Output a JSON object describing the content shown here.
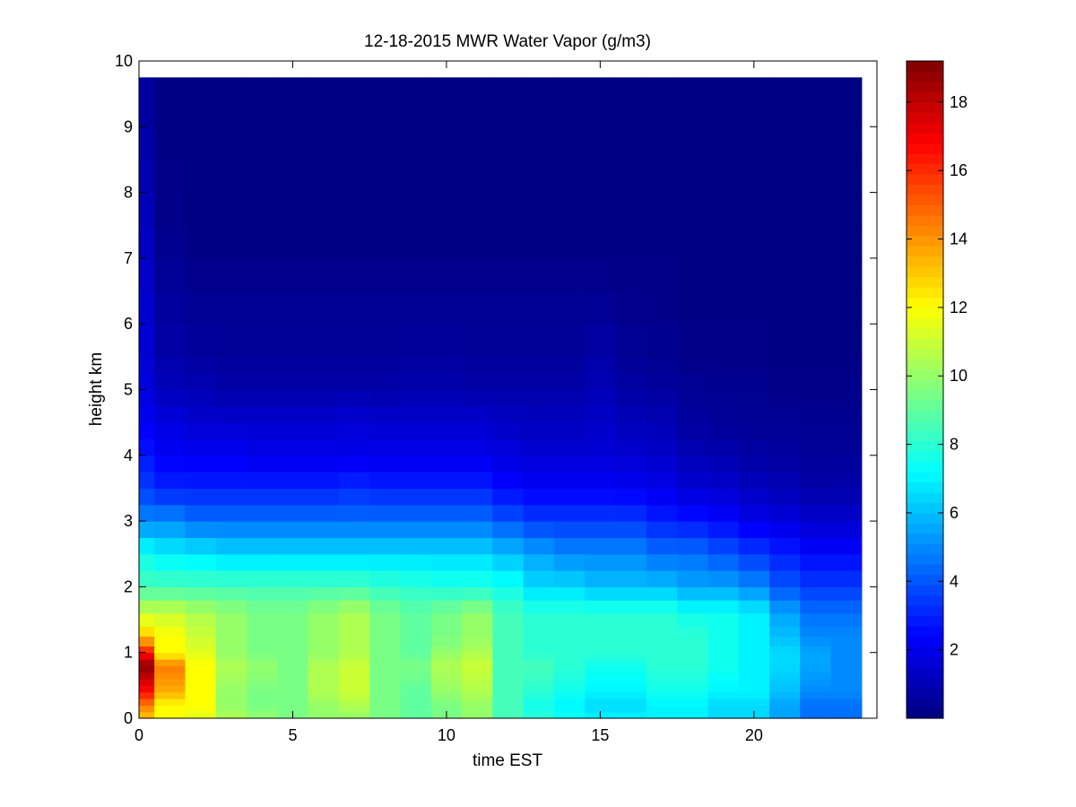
{
  "chart_data": {
    "type": "heatmap",
    "title": "12-18-2015 MWR Water Vapor (g/m3)",
    "xlabel": "time EST",
    "ylabel": "height km",
    "xlim": [
      0,
      24
    ],
    "ylim": [
      0,
      10
    ],
    "x_ticks": [
      0,
      5,
      10,
      15,
      20
    ],
    "y_ticks": [
      0,
      1,
      2,
      3,
      4,
      5,
      6,
      7,
      8,
      9,
      10
    ],
    "colorbar": {
      "colormap": "jet",
      "range": [
        0,
        19.2
      ],
      "ticks": [
        2,
        4,
        6,
        8,
        10,
        12,
        14,
        16,
        18
      ]
    },
    "grid": false,
    "time_edges": [
      0,
      0.5,
      1.5,
      2.5,
      3.5,
      4.5,
      5.5,
      6.5,
      7.5,
      8.5,
      9.5,
      10.5,
      11.5,
      12.5,
      13.5,
      14.5,
      15.5,
      16.5,
      17.5,
      18.5,
      19.5,
      20.5,
      21.5,
      22.5,
      23.5
    ],
    "height_edges": [
      0,
      0.1,
      0.2,
      0.3,
      0.4,
      0.5,
      0.6,
      0.7,
      0.8,
      0.9,
      1.0,
      1.1,
      1.25,
      1.4,
      1.6,
      1.8,
      2.0,
      2.25,
      2.5,
      2.75,
      3.0,
      3.25,
      3.5,
      3.75,
      4.0,
      4.25,
      4.5,
      4.75,
      5.0,
      5.25,
      5.5,
      6.0,
      6.5,
      7.0,
      7.5,
      8.0,
      8.5,
      9.0,
      9.75
    ],
    "height_levels_km": [
      0,
      0.2,
      0.4,
      0.8,
      1.0,
      1.25,
      1.6,
      2.0,
      2.5,
      3.0,
      3.5,
      4.0,
      4.5,
      5.0,
      5.5,
      6.5,
      7.5,
      9.75
    ],
    "time_profiles": [
      {
        "time": 0.0,
        "values": [
          13.0,
          14.5,
          16.5,
          19.0,
          16.5,
          13.0,
          11.0,
          8.5,
          7.5,
          5.0,
          3.5,
          2.8,
          2.2,
          1.8,
          1.6,
          1.4,
          1.1,
          0.5
        ]
      },
      {
        "time": 1.0,
        "values": [
          12.0,
          12.0,
          13.5,
          14.5,
          12.0,
          12.0,
          11.0,
          8.5,
          7.0,
          5.0,
          3.0,
          2.3,
          1.8,
          1.1,
          0.8,
          0.5,
          0.2,
          0.1
        ]
      },
      {
        "time": 2.0,
        "values": [
          11.5,
          12.0,
          12.0,
          12.0,
          11.5,
          11.0,
          10.5,
          8.5,
          6.8,
          4.5,
          3.0,
          2.2,
          1.5,
          1.0,
          0.6,
          0.3,
          0.1,
          0.1
        ]
      },
      {
        "time": 3.0,
        "values": [
          10.5,
          10.0,
          10.0,
          10.5,
          10.0,
          10.0,
          10.0,
          8.5,
          6.5,
          4.5,
          3.0,
          2.2,
          1.5,
          0.8,
          0.5,
          0.3,
          0.1,
          0.1
        ]
      },
      {
        "time": 4.0,
        "values": [
          10.0,
          9.5,
          9.5,
          10.0,
          9.5,
          9.5,
          9.5,
          8.5,
          6.5,
          4.5,
          3.0,
          2.0,
          1.5,
          0.8,
          0.5,
          0.3,
          0.1,
          0.1
        ]
      },
      {
        "time": 5.0,
        "values": [
          9.5,
          9.5,
          9.5,
          9.5,
          9.5,
          9.5,
          9.5,
          8.5,
          6.5,
          4.5,
          3.0,
          2.0,
          1.5,
          0.8,
          0.5,
          0.3,
          0.1,
          0.1
        ]
      },
      {
        "time": 6.0,
        "values": [
          10.0,
          10.0,
          10.5,
          10.5,
          10.0,
          10.0,
          10.0,
          8.5,
          6.5,
          4.5,
          3.0,
          2.0,
          1.5,
          0.8,
          0.5,
          0.3,
          0.1,
          0.1
        ]
      },
      {
        "time": 7.0,
        "values": [
          10.0,
          10.5,
          11.0,
          11.0,
          10.5,
          10.5,
          10.5,
          8.5,
          6.5,
          4.5,
          3.2,
          2.0,
          1.6,
          0.8,
          0.5,
          0.3,
          0.1,
          0.1
        ]
      },
      {
        "time": 8.0,
        "values": [
          9.5,
          9.5,
          9.5,
          9.5,
          9.5,
          9.5,
          9.5,
          8.2,
          6.5,
          4.5,
          3.0,
          2.0,
          1.5,
          0.8,
          0.5,
          0.3,
          0.1,
          0.1
        ]
      },
      {
        "time": 9.0,
        "values": [
          9.0,
          9.0,
          9.0,
          9.5,
          9.0,
          9.0,
          9.0,
          8.0,
          6.5,
          4.5,
          3.0,
          2.0,
          1.5,
          0.9,
          0.6,
          0.3,
          0.1,
          0.1
        ]
      },
      {
        "time": 10.0,
        "values": [
          9.5,
          9.5,
          10.0,
          10.5,
          10.0,
          9.5,
          9.5,
          7.8,
          6.5,
          4.5,
          3.0,
          2.0,
          1.5,
          0.9,
          0.6,
          0.3,
          0.1,
          0.1
        ]
      },
      {
        "time": 11.0,
        "values": [
          10.0,
          10.0,
          10.5,
          11.0,
          10.5,
          10.0,
          10.0,
          7.8,
          6.5,
          4.5,
          3.0,
          2.0,
          1.5,
          0.8,
          0.5,
          0.3,
          0.1,
          0.1
        ]
      },
      {
        "time": 12.0,
        "values": [
          8.5,
          8.5,
          8.5,
          8.5,
          8.5,
          8.5,
          8.5,
          7.5,
          6.0,
          4.0,
          2.5,
          1.8,
          1.3,
          0.8,
          0.5,
          0.3,
          0.1,
          0.1
        ]
      },
      {
        "time": 13.0,
        "values": [
          8.0,
          7.5,
          8.0,
          8.5,
          8.0,
          8.0,
          8.0,
          6.5,
          5.5,
          3.5,
          2.3,
          1.6,
          1.2,
          0.8,
          0.5,
          0.3,
          0.1,
          0.1
        ]
      },
      {
        "time": 14.0,
        "values": [
          7.5,
          7.0,
          7.5,
          8.0,
          8.0,
          8.0,
          8.0,
          6.5,
          5.0,
          3.5,
          2.3,
          1.6,
          1.2,
          0.8,
          0.5,
          0.3,
          0.1,
          0.1
        ]
      },
      {
        "time": 15.0,
        "values": [
          7.0,
          6.5,
          7.0,
          7.5,
          8.0,
          8.0,
          8.0,
          6.0,
          5.0,
          3.5,
          2.3,
          1.6,
          1.4,
          1.0,
          0.8,
          0.3,
          0.1,
          0.1
        ]
      },
      {
        "time": 16.0,
        "values": [
          7.0,
          6.5,
          7.0,
          7.5,
          8.0,
          8.0,
          8.0,
          6.0,
          5.0,
          3.5,
          2.2,
          1.5,
          1.1,
          0.7,
          0.4,
          0.2,
          0.1,
          0.1
        ]
      },
      {
        "time": 17.0,
        "values": [
          7.0,
          7.0,
          7.5,
          8.0,
          8.0,
          8.0,
          8.0,
          6.0,
          4.5,
          3.0,
          2.0,
          1.4,
          1.0,
          0.6,
          0.3,
          0.2,
          0.1,
          0.1
        ]
      },
      {
        "time": 18.0,
        "values": [
          7.0,
          7.0,
          7.5,
          8.0,
          8.0,
          8.0,
          7.5,
          5.5,
          4.5,
          2.8,
          1.6,
          1.0,
          0.6,
          0.4,
          0.2,
          0.1,
          0.1,
          0.1
        ]
      },
      {
        "time": 19.0,
        "values": [
          6.5,
          6.5,
          7.0,
          7.5,
          7.5,
          7.5,
          7.5,
          5.5,
          4.0,
          2.5,
          1.5,
          0.9,
          0.5,
          0.3,
          0.2,
          0.1,
          0.1,
          0.1
        ]
      },
      {
        "time": 20.0,
        "values": [
          6.5,
          6.5,
          7.0,
          7.0,
          7.0,
          7.0,
          7.0,
          5.0,
          3.5,
          2.0,
          1.2,
          0.7,
          0.4,
          0.3,
          0.2,
          0.1,
          0.1,
          0.1
        ]
      },
      {
        "time": 21.0,
        "values": [
          5.5,
          5.5,
          6.0,
          6.5,
          6.5,
          6.0,
          5.5,
          4.0,
          3.0,
          1.8,
          1.0,
          0.6,
          0.4,
          0.2,
          0.1,
          0.1,
          0.1,
          0.1
        ]
      },
      {
        "time": 22.0,
        "values": [
          4.5,
          4.5,
          5.0,
          5.5,
          5.5,
          5.0,
          4.5,
          3.5,
          2.5,
          1.5,
          0.8,
          0.5,
          0.3,
          0.2,
          0.1,
          0.1,
          0.1,
          0.1
        ]
      },
      {
        "time": 23.0,
        "values": [
          4.5,
          4.5,
          5.0,
          5.0,
          5.0,
          5.0,
          4.5,
          3.5,
          2.5,
          1.5,
          0.8,
          0.5,
          0.3,
          0.2,
          0.1,
          0.1,
          0.1,
          0.1
        ]
      }
    ]
  }
}
